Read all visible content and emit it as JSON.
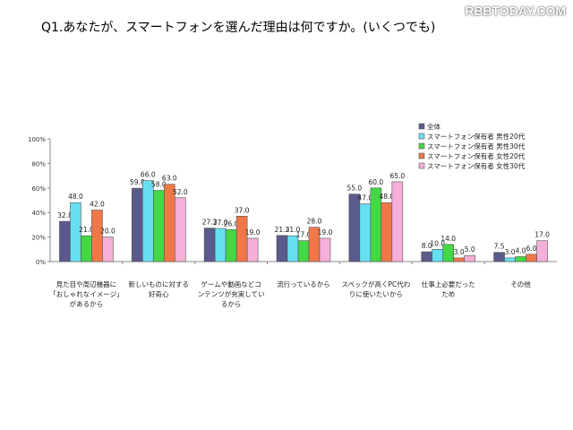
{
  "watermark": "RBBTODAY.COM",
  "chart_data": {
    "type": "bar",
    "title": "Q1.あなたが、スマートフォンを選んだ理由は何ですか。(いくつでも)",
    "categories": [
      [
        "見た目や周辺機器に",
        "「おしゃれなイメージ」",
        "があるから"
      ],
      [
        "新しいものに対する",
        "好奇心"
      ],
      [
        "ゲームや動画などコ",
        "ンテンツが充実してい",
        "るから"
      ],
      [
        "流行っているから"
      ],
      [
        "スペックが高くPC代わ",
        "りに使いたいから"
      ],
      [
        "仕事上必要だった",
        "ため"
      ],
      [
        "その他"
      ]
    ],
    "series": [
      {
        "name": "全体",
        "color": "#5a5a8c",
        "values": [
          32.8,
          59.8,
          27.3,
          21.3,
          55.0,
          8.0,
          7.5
        ]
      },
      {
        "name": "スマートフォン保有者 男性20代",
        "color": "#66e0f0",
        "values": [
          48.0,
          66.0,
          27.0,
          21.0,
          47.0,
          10.0,
          3.0
        ]
      },
      {
        "name": "スマートフォン保有者 男性30代",
        "color": "#44d844",
        "values": [
          21.0,
          58.0,
          26.0,
          17.0,
          60.0,
          14.0,
          4.0
        ]
      },
      {
        "name": "スマートフォン保有者 女性20代",
        "color": "#f07848",
        "values": [
          42.0,
          63.0,
          37.0,
          28.0,
          48.0,
          3.0,
          6.0
        ]
      },
      {
        "name": "スマートフォン保有者 女性30代",
        "color": "#f4b0d8",
        "values": [
          20.0,
          52.0,
          19.0,
          19.0,
          65.0,
          5.0,
          17.0
        ]
      }
    ],
    "ylim": [
      0,
      100
    ],
    "yticks": [
      "0%",
      "20%",
      "40%",
      "60%",
      "80%",
      "100%"
    ],
    "legend": "top-right",
    "grid": false
  }
}
